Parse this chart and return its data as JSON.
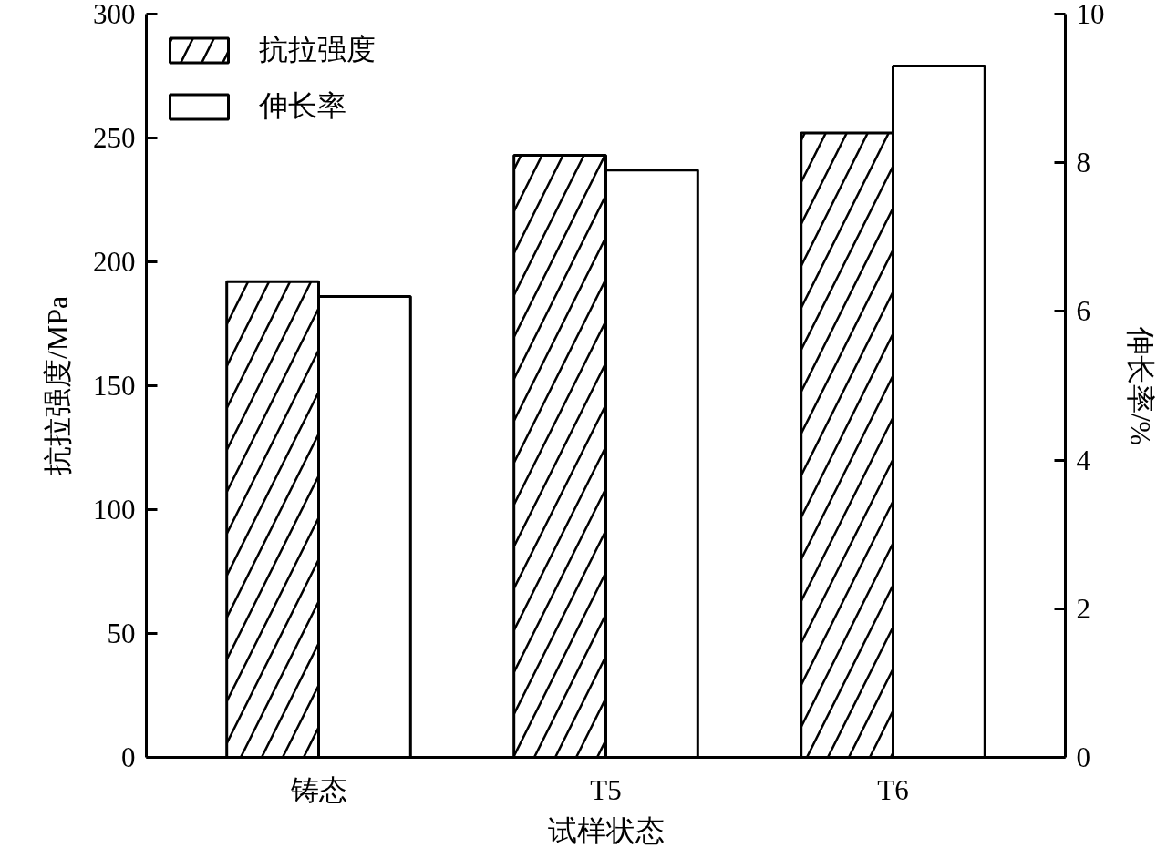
{
  "chart_data": {
    "type": "bar",
    "xlabel": "试样状态",
    "ylabel": "抗拉强度/MPa",
    "y2label": "伸长率/%",
    "categories": [
      "铸态",
      "T5",
      "T6"
    ],
    "series": [
      {
        "name": "抗拉强度",
        "color": "#000000",
        "values": [
          192,
          243,
          252
        ]
      },
      {
        "name": "伸长率",
        "color": "#000000",
        "values": [
          6.2,
          7.9,
          9.3
        ],
        "axis": "y2"
      }
    ],
    "ylim": [
      0,
      300
    ],
    "yticks": [
      0,
      50,
      100,
      150,
      200,
      250,
      300
    ],
    "y2lim": [
      0,
      10
    ],
    "y2ticks": [
      0,
      2,
      4,
      6,
      8,
      10
    ],
    "legend": "top left",
    "grid": false
  }
}
